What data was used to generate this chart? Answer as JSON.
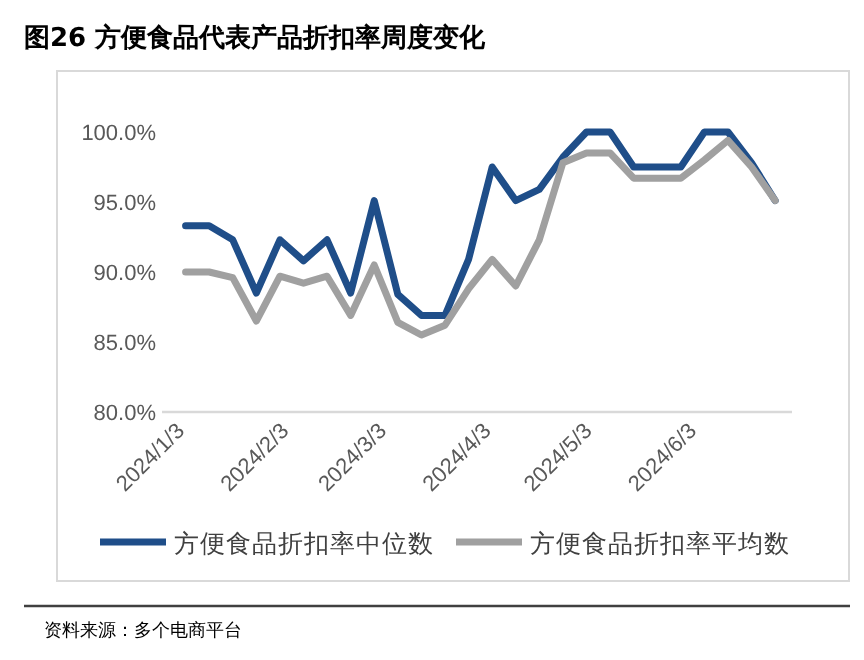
{
  "chart_data": {
    "type": "line",
    "title": "图26 方便食品代表产品折扣率周度变化",
    "x": [
      "2024-01-03",
      "2024-01-10",
      "2024-01-17",
      "2024-01-24",
      "2024-01-31",
      "2024-02-07",
      "2024-02-14",
      "2024-02-21",
      "2024-02-28",
      "2024-03-06",
      "2024-03-13",
      "2024-03-20",
      "2024-03-27",
      "2024-04-03",
      "2024-04-10",
      "2024-04-17",
      "2024-04-24",
      "2024-05-01",
      "2024-05-08",
      "2024-05-15",
      "2024-05-22",
      "2024-05-29",
      "2024-06-05",
      "2024-06-12",
      "2024-06-19",
      "2024-06-26"
    ],
    "series": [
      {
        "name": "方便食品折扣率中位数",
        "color": "#1f4e89",
        "values": [
          93.3,
          93.3,
          92.3,
          88.5,
          92.3,
          90.8,
          92.3,
          88.5,
          95.1,
          88.4,
          86.9,
          86.9,
          90.9,
          97.5,
          95.1,
          95.9,
          98.2,
          100,
          100,
          97.5,
          97.5,
          97.5,
          100,
          100,
          97.8,
          95.1
        ]
      },
      {
        "name": "方便食品折扣率平均数",
        "color": "#a0a0a0",
        "values": [
          90.0,
          90.0,
          89.6,
          86.5,
          89.7,
          89.2,
          89.7,
          86.9,
          90.5,
          86.4,
          85.5,
          86.2,
          88.8,
          90.9,
          89.0,
          92.3,
          97.8,
          98.5,
          98.5,
          96.7,
          96.7,
          96.7,
          98.0,
          99.4,
          97.5,
          95.1
        ]
      }
    ],
    "xlim": [
      "2023-12-27",
      "2024-07-01"
    ],
    "xticks": [
      {
        "value": "2024-01-03",
        "label": "2024/1/3"
      },
      {
        "value": "2024-02-03",
        "label": "2024/2/3"
      },
      {
        "value": "2024-03-03",
        "label": "2024/3/3"
      },
      {
        "value": "2024-04-03",
        "label": "2024/4/3"
      },
      {
        "value": "2024-05-03",
        "label": "2024/5/3"
      },
      {
        "value": "2024-06-03",
        "label": "2024/6/3"
      }
    ],
    "ylim": [
      80,
      100
    ],
    "yticks": [
      {
        "value": 80,
        "label": "80.0%"
      },
      {
        "value": 85,
        "label": "85.0%"
      },
      {
        "value": 90,
        "label": "90.0%"
      },
      {
        "value": 95,
        "label": "95.0%"
      },
      {
        "value": 100,
        "label": "100.0%"
      }
    ],
    "grid": false,
    "legend": "bottom",
    "line_style": "solid",
    "marker": "none",
    "annotations": [
      "资料来源：多个电商平台"
    ]
  }
}
